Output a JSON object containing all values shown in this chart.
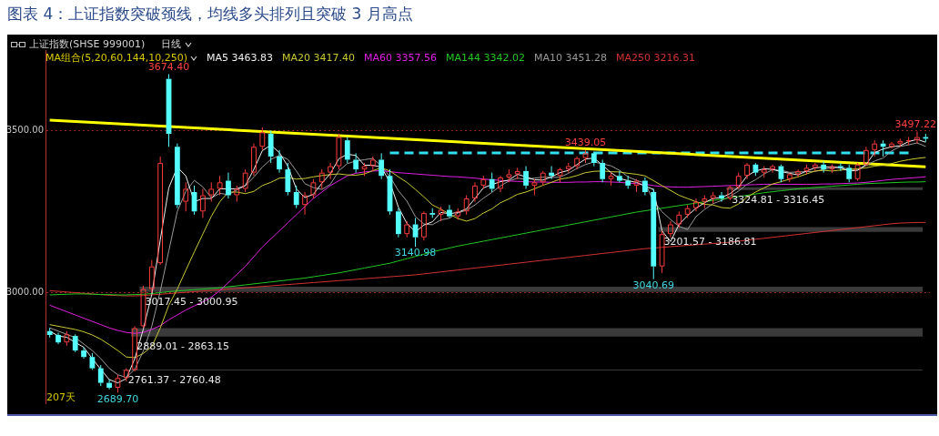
{
  "chart_data": {
    "type": "candlestick",
    "title": "图表 4：上证指数突破颈线，均线多头排列且突破 3 月高点",
    "subtitle": "上证指数(SHSE 999001)",
    "legend_title": "MA组合(5,20,60,144,10,250)",
    "legend": "top left",
    "categories": [
      null,
      null,
      null,
      null,
      null,
      null,
      null,
      null,
      null,
      null,
      null,
      null,
      null,
      null,
      null,
      null,
      null,
      null,
      null,
      null,
      null,
      null,
      null,
      null,
      null,
      null,
      null,
      null,
      null,
      null,
      null,
      null,
      null,
      null,
      null,
      null,
      null,
      null,
      null,
      null,
      null,
      null,
      null,
      null,
      null,
      null,
      null,
      null,
      null,
      null,
      null,
      null,
      null,
      null,
      null,
      null,
      null,
      null,
      null,
      null,
      null,
      null,
      null,
      null,
      null,
      null,
      null,
      null,
      null,
      null,
      null,
      null,
      null,
      null,
      null,
      null,
      null,
      null,
      null,
      null,
      null,
      null,
      null,
      null,
      null,
      null,
      null,
      null,
      null,
      null,
      null,
      null,
      null,
      null,
      null,
      null,
      null,
      null,
      null,
      null,
      null,
      null,
      null,
      null
    ],
    "ohlc": [
      [
        2880,
        2890,
        2860,
        2868
      ],
      [
        2868,
        2875,
        2840,
        2845
      ],
      [
        2845,
        2880,
        2835,
        2870
      ],
      [
        2865,
        2870,
        2815,
        2820
      ],
      [
        2820,
        2830,
        2795,
        2800
      ],
      [
        2800,
        2812,
        2760,
        2765
      ],
      [
        2765,
        2775,
        2710,
        2720
      ],
      [
        2720,
        2730,
        2700,
        2705
      ],
      [
        2705,
        2745,
        2689.7,
        2735
      ],
      [
        2735,
        2765,
        2725,
        2760
      ],
      [
        2760,
        2895,
        2755,
        2889
      ],
      [
        2895,
        3020,
        2890,
        3010
      ],
      [
        3010,
        3100,
        3000,
        3080
      ],
      [
        3090,
        3420,
        3085,
        3400
      ],
      [
        3660,
        3674.4,
        3450,
        3490
      ],
      [
        3450,
        3460,
        3260,
        3270
      ],
      [
        3280,
        3340,
        3250,
        3320
      ],
      [
        3310,
        3330,
        3240,
        3250
      ],
      [
        3250,
        3320,
        3230,
        3300
      ],
      [
        3300,
        3340,
        3280,
        3320
      ],
      [
        3320,
        3360,
        3300,
        3340
      ],
      [
        3345,
        3370,
        3290,
        3300
      ],
      [
        3300,
        3330,
        3280,
        3320
      ],
      [
        3320,
        3380,
        3310,
        3370
      ],
      [
        3370,
        3460,
        3360,
        3450
      ],
      [
        3450,
        3510,
        3440,
        3495
      ],
      [
        3490,
        3500,
        3400,
        3420
      ],
      [
        3420,
        3440,
        3370,
        3380
      ],
      [
        3380,
        3400,
        3300,
        3310
      ],
      [
        3310,
        3330,
        3260,
        3270
      ],
      [
        3270,
        3310,
        3240,
        3300
      ],
      [
        3300,
        3350,
        3290,
        3340
      ],
      [
        3340,
        3380,
        3320,
        3370
      ],
      [
        3370,
        3400,
        3350,
        3390
      ],
      [
        3390,
        3490,
        3380,
        3480
      ],
      [
        3470,
        3480,
        3400,
        3410
      ],
      [
        3410,
        3430,
        3370,
        3380
      ],
      [
        3380,
        3400,
        3360,
        3390
      ],
      [
        3390,
        3420,
        3375,
        3410
      ],
      [
        3410,
        3430,
        3350,
        3360
      ],
      [
        3360,
        3380,
        3240,
        3250
      ],
      [
        3250,
        3260,
        3170,
        3180
      ],
      [
        3180,
        3220,
        3170,
        3210
      ],
      [
        3210,
        3230,
        3140.98,
        3170
      ],
      [
        3170,
        3250,
        3160,
        3245
      ],
      [
        3245,
        3260,
        3230,
        3240
      ],
      [
        3240,
        3265,
        3220,
        3255
      ],
      [
        3255,
        3270,
        3230,
        3235
      ],
      [
        3235,
        3260,
        3225,
        3250
      ],
      [
        3250,
        3300,
        3240,
        3290
      ],
      [
        3290,
        3340,
        3280,
        3330
      ],
      [
        3330,
        3360,
        3320,
        3350
      ],
      [
        3350,
        3370,
        3310,
        3320
      ],
      [
        3320,
        3360,
        3310,
        3355
      ],
      [
        3355,
        3380,
        3340,
        3365
      ],
      [
        3365,
        3385,
        3350,
        3375
      ],
      [
        3375,
        3390,
        3320,
        3330
      ],
      [
        3330,
        3350,
        3300,
        3340
      ],
      [
        3340,
        3375,
        3330,
        3370
      ],
      [
        3370,
        3390,
        3350,
        3360
      ],
      [
        3360,
        3385,
        3340,
        3380
      ],
      [
        3380,
        3400,
        3370,
        3390
      ],
      [
        3390,
        3420,
        3380,
        3415
      ],
      [
        3415,
        3439.05,
        3400,
        3430
      ],
      [
        3430,
        3435,
        3390,
        3400
      ],
      [
        3400,
        3410,
        3340,
        3350
      ],
      [
        3350,
        3370,
        3330,
        3360
      ],
      [
        3360,
        3375,
        3340,
        3345
      ],
      [
        3345,
        3360,
        3320,
        3330
      ],
      [
        3330,
        3350,
        3310,
        3345
      ],
      [
        3345,
        3355,
        3300,
        3310
      ],
      [
        3310,
        3320,
        3040.69,
        3080
      ],
      [
        3080,
        3190,
        3060,
        3180
      ],
      [
        3180,
        3220,
        3170,
        3210
      ],
      [
        3210,
        3250,
        3200,
        3240
      ],
      [
        3240,
        3270,
        3230,
        3260
      ],
      [
        3260,
        3290,
        3250,
        3280
      ],
      [
        3280,
        3300,
        3260,
        3290
      ],
      [
        3290,
        3310,
        3275,
        3300
      ],
      [
        3300,
        3310,
        3280,
        3290
      ],
      [
        3290,
        3330,
        3285,
        3325
      ],
      [
        3325,
        3370,
        3320,
        3360
      ],
      [
        3360,
        3400,
        3350,
        3395
      ],
      [
        3395,
        3400,
        3360,
        3370
      ],
      [
        3370,
        3390,
        3355,
        3380
      ],
      [
        3380,
        3395,
        3370,
        3390
      ],
      [
        3390,
        3395,
        3340,
        3350
      ],
      [
        3350,
        3370,
        3340,
        3365
      ],
      [
        3365,
        3380,
        3355,
        3375
      ],
      [
        3375,
        3395,
        3365,
        3385
      ],
      [
        3385,
        3400,
        3375,
        3395
      ],
      [
        3395,
        3405,
        3370,
        3380
      ],
      [
        3380,
        3395,
        3370,
        3390
      ],
      [
        3390,
        3400,
        3375,
        3385
      ],
      [
        3385,
        3395,
        3340,
        3350
      ],
      [
        3350,
        3400,
        3345,
        3395
      ],
      [
        3395,
        3450,
        3390,
        3440
      ],
      [
        3440,
        3470,
        3420,
        3460
      ],
      [
        3460,
        3470,
        3420,
        3450
      ],
      [
        3450,
        3465,
        3445,
        3460
      ],
      [
        3460,
        3475,
        3450,
        3468
      ],
      [
        3468,
        3480,
        3455,
        3470
      ],
      [
        3470,
        3497.22,
        3460,
        3480
      ],
      [
        3480,
        3490,
        3465,
        3475
      ]
    ],
    "series": [
      {
        "name": "MA5 3463.83",
        "type": "line",
        "color": "#f0f0f0",
        "values": [
          2880,
          2865,
          2861,
          2845,
          2830,
          2795,
          2762,
          2730,
          2720,
          2733,
          2795,
          2886,
          2993,
          3163,
          3323,
          3387,
          3360,
          3280,
          3290,
          3290,
          3320,
          3320,
          3320,
          3330,
          3380,
          3438,
          3455,
          3432,
          3390,
          3320,
          3293,
          3303,
          3337,
          3367,
          3413,
          3427,
          3423,
          3393,
          3393,
          3387,
          3340,
          3263,
          3213,
          3187,
          3208,
          3218,
          3247,
          3243,
          3247,
          3258,
          3290,
          3323,
          3333,
          3342,
          3347,
          3365,
          3357,
          3348,
          3347,
          3357,
          3370,
          3377,
          3395,
          3412,
          3415,
          3393,
          3370,
          3352,
          3345,
          3340,
          3328,
          3318,
          3190,
          3157,
          3210,
          3237,
          3260,
          3277,
          3290,
          3293,
          3305,
          3325,
          3360,
          3375,
          3382,
          3380,
          3373,
          3368,
          3363,
          3375,
          3385,
          3387,
          3388,
          3385,
          3375,
          3377,
          3395,
          3432,
          3443,
          3450,
          3453,
          3466,
          3473,
          3464
        ]
      },
      {
        "name": "MA20 3417.40",
        "type": "line",
        "color": "#c8c832",
        "values": [
          2900,
          2895,
          2890,
          2885,
          2878,
          2868,
          2855,
          2838,
          2820,
          2800,
          2798,
          2811,
          2832,
          2890,
          2960,
          3010,
          3068,
          3125,
          3180,
          3235,
          3280,
          3310,
          3310,
          3305,
          3312,
          3330,
          3340,
          3353,
          3355,
          3350,
          3352,
          3357,
          3361,
          3364,
          3366,
          3363,
          3362,
          3366,
          3376,
          3385,
          3375,
          3357,
          3340,
          3318,
          3295,
          3270,
          3257,
          3242,
          3228,
          3220,
          3228,
          3245,
          3258,
          3277,
          3289,
          3303,
          3310,
          3320,
          3331,
          3340,
          3350,
          3354,
          3361,
          3370,
          3374,
          3375,
          3373,
          3372,
          3368,
          3365,
          3360,
          3345,
          3330,
          3315,
          3300,
          3290,
          3280,
          3272,
          3270,
          3262,
          3260,
          3273,
          3294,
          3310,
          3323,
          3335,
          3342,
          3350,
          3357,
          3366,
          3375,
          3377,
          3375,
          3378,
          3380,
          3382,
          3385,
          3390,
          3393,
          3398,
          3405,
          3410,
          3414,
          3417
        ]
      },
      {
        "name": "MA60 3357.56",
        "type": "line",
        "color": "#e020e0",
        "values": [
          2960,
          2950,
          2940,
          2930,
          2920,
          2910,
          2900,
          2890,
          2882,
          2876,
          2873,
          2876,
          2885,
          2897,
          2915,
          2930,
          2945,
          2958,
          2970,
          2985,
          3005,
          3030,
          3055,
          3080,
          3110,
          3140,
          3165,
          3190,
          3215,
          3240,
          3265,
          3290,
          3310,
          3330,
          3345,
          3360,
          3368,
          3372,
          3375,
          3376,
          3373,
          3370,
          3368,
          3366,
          3364,
          3362,
          3360,
          3358,
          3357,
          3355,
          3353,
          3350,
          3348,
          3346,
          3344,
          3343,
          3342,
          3341,
          3341,
          3340,
          3340,
          3340,
          3341,
          3341,
          3342,
          3342,
          3341,
          3340,
          3338,
          3336,
          3334,
          3330,
          3327,
          3326,
          3325,
          3325,
          3326,
          3327,
          3328,
          3329,
          3330,
          3331,
          3332,
          3333,
          3334,
          3334,
          3334,
          3334,
          3334,
          3334,
          3334,
          3335,
          3335,
          3336,
          3337,
          3338,
          3340,
          3343,
          3346,
          3349,
          3351,
          3353,
          3355,
          3357
        ]
      },
      {
        "name": "MA144 3342.02",
        "type": "line",
        "color": "#22c822",
        "values": [
          2992,
          2993,
          2994,
          2995,
          2995,
          2994,
          2993,
          2993,
          2992,
          2992,
          2993,
          2994,
          2996,
          2999,
          3002,
          3004,
          3006,
          3008,
          3010,
          3012,
          3014,
          3017,
          3020,
          3023,
          3026,
          3029,
          3032,
          3035,
          3038,
          3041,
          3044,
          3048,
          3052,
          3056,
          3060,
          3065,
          3070,
          3075,
          3080,
          3085,
          3090,
          3097,
          3104,
          3111,
          3118,
          3125,
          3131,
          3137,
          3143,
          3148,
          3153,
          3158,
          3163,
          3168,
          3173,
          3178,
          3183,
          3188,
          3193,
          3198,
          3203,
          3208,
          3213,
          3218,
          3223,
          3228,
          3233,
          3238,
          3243,
          3248,
          3252,
          3256,
          3260,
          3264,
          3268,
          3272,
          3276,
          3280,
          3284,
          3288,
          3292,
          3296,
          3300,
          3304,
          3308,
          3311,
          3314,
          3317,
          3320,
          3322,
          3324,
          3326,
          3328,
          3330,
          3332,
          3334,
          3336,
          3337,
          3338,
          3339,
          3340,
          3341,
          3341,
          3342
        ]
      },
      {
        "name": "MA10 3451.28",
        "type": "line",
        "color": "#9a9a9a",
        "values": [
          2890,
          2880,
          2870,
          2860,
          2840,
          2820,
          2795,
          2765,
          2745,
          2737,
          2762,
          2818,
          2895,
          3004,
          3128,
          3250,
          3312,
          3346,
          3326,
          3292,
          3306,
          3302,
          3316,
          3330,
          3356,
          3387,
          3411,
          3423,
          3411,
          3375,
          3336,
          3324,
          3318,
          3334,
          3376,
          3398,
          3406,
          3410,
          3414,
          3390,
          3358,
          3314,
          3282,
          3234,
          3211,
          3209,
          3224,
          3229,
          3245,
          3254,
          3270,
          3291,
          3309,
          3329,
          3344,
          3353,
          3349,
          3353,
          3356,
          3355,
          3356,
          3368,
          3383,
          3395,
          3403,
          3397,
          3391,
          3377,
          3357,
          3346,
          3338,
          3282,
          3249,
          3225,
          3204,
          3194,
          3234,
          3256,
          3274,
          3284,
          3297,
          3313,
          3334,
          3348,
          3366,
          3379,
          3377,
          3371,
          3372,
          3373,
          3374,
          3380,
          3385,
          3387,
          3380,
          3380,
          3392,
          3406,
          3415,
          3437,
          3451,
          3456,
          3462,
          3451
        ]
      },
      {
        "name": "MA250 3216.31",
        "type": "line",
        "color": "#d23232",
        "values": [
          3005,
          3003,
          3001,
          2999,
          2997,
          2995,
          2993,
          2991,
          2990,
          2989,
          2989,
          2990,
          2992,
          2994,
          2996,
          2998,
          3000,
          3002,
          3004,
          3006,
          3008,
          3010,
          3012,
          3014,
          3016,
          3018,
          3020,
          3022,
          3024,
          3026,
          3028,
          3030,
          3032,
          3034,
          3036,
          3038,
          3040,
          3042,
          3044,
          3046,
          3048,
          3050,
          3052,
          3054,
          3057,
          3060,
          3063,
          3066,
          3069,
          3072,
          3075,
          3078,
          3081,
          3084,
          3087,
          3090,
          3093,
          3096,
          3099,
          3102,
          3105,
          3108,
          3111,
          3114,
          3117,
          3120,
          3123,
          3126,
          3129,
          3132,
          3135,
          3137,
          3139,
          3141,
          3143,
          3145,
          3147,
          3149,
          3151,
          3153,
          3155,
          3158,
          3161,
          3164,
          3167,
          3170,
          3173,
          3176,
          3179,
          3182,
          3185,
          3188,
          3191,
          3194,
          3197,
          3200,
          3203,
          3206,
          3209,
          3212,
          3214,
          3215,
          3216,
          3216
        ]
      },
      {
        "type": "line",
        "color": "#ffff00",
        "values": [
          3532,
          null,
          null,
          null,
          null,
          null,
          null,
          null,
          null,
          null,
          null,
          null,
          null,
          null,
          null,
          null,
          null,
          null,
          null,
          null,
          null,
          null,
          null,
          null,
          null,
          null,
          null,
          null,
          null,
          null,
          null,
          null,
          null,
          null,
          null,
          null,
          null,
          null,
          null,
          null,
          null,
          null,
          null,
          null,
          null,
          null,
          null,
          null,
          null,
          null,
          null,
          null,
          null,
          null,
          null,
          null,
          null,
          null,
          null,
          null,
          null,
          null,
          null,
          null,
          null,
          null,
          null,
          null,
          null,
          null,
          null,
          null,
          null,
          null,
          null,
          null,
          null,
          null,
          null,
          null,
          null,
          null,
          null,
          null,
          null,
          null,
          null,
          null,
          null,
          null,
          null,
          null,
          null,
          null,
          null,
          null,
          null,
          null,
          null,
          null,
          null,
          null,
          null,
          3388
        ]
      },
      {
        "type": "line",
        "color": "#33e0f0",
        "line_style": "dashed",
        "values": [
          null,
          null,
          null,
          null,
          null,
          null,
          null,
          null,
          null,
          null,
          null,
          null,
          null,
          null,
          null,
          null,
          null,
          null,
          null,
          null,
          null,
          null,
          null,
          null,
          null,
          null,
          null,
          null,
          null,
          null,
          null,
          null,
          null,
          null,
          null,
          null,
          null,
          null,
          null,
          null,
          3431,
          null,
          null,
          null,
          null,
          null,
          null,
          null,
          null,
          null,
          null,
          null,
          null,
          null,
          null,
          null,
          null,
          null,
          null,
          null,
          null,
          null,
          null,
          null,
          null,
          null,
          null,
          null,
          null,
          null,
          null,
          null,
          null,
          null,
          null,
          null,
          null,
          null,
          null,
          null,
          null,
          null,
          null,
          null,
          null,
          null,
          null,
          null,
          null,
          null,
          null,
          null,
          null,
          null,
          null,
          null,
          null,
          null,
          null,
          null,
          null,
          3431,
          null,
          null
        ]
      }
    ],
    "bands": [
      {
        "axis": "y",
        "from": 3000.95,
        "to": 3017.45,
        "label": "3017.45 - 3000.95",
        "color": "#3a3a3a"
      },
      {
        "axis": "y",
        "from": 2863.15,
        "to": 2889.01,
        "label": "2889.01 - 2863.15",
        "color": "#3a3a3a"
      },
      {
        "axis": "y",
        "from": 2760.48,
        "to": 2761.37,
        "label": "2761.37 - 2760.48",
        "color": "#3a3a3a"
      },
      {
        "axis": "y",
        "from": 3316.45,
        "to": 3324.81,
        "label": "3324.81 - 3316.45",
        "color": "#3a3a3a"
      },
      {
        "axis": "y",
        "from": 3186.81,
        "to": 3201.57,
        "label": "3201.57 - 3186.81",
        "color": "#3a3a3a"
      }
    ],
    "annotations": [
      "日线",
      "207天",
      {
        "text": "3674.40",
        "y": 3674.4
      },
      {
        "text": "3439.05",
        "y": 3439.05
      },
      {
        "text": "3497.22",
        "y": 3497.22
      },
      {
        "text": "3140.98",
        "y": 3140.98
      },
      {
        "text": "3040.69",
        "y": 3040.69
      },
      {
        "text": "2689.70",
        "y": 2689.7
      }
    ],
    "ylim": [
      2657,
      3749
    ],
    "yticks": [
      {
        "value": 3000,
        "label": "3000.00"
      },
      {
        "value": 3500,
        "label": "3500.00"
      }
    ],
    "grid": "y",
    "tick_labels": "y"
  }
}
